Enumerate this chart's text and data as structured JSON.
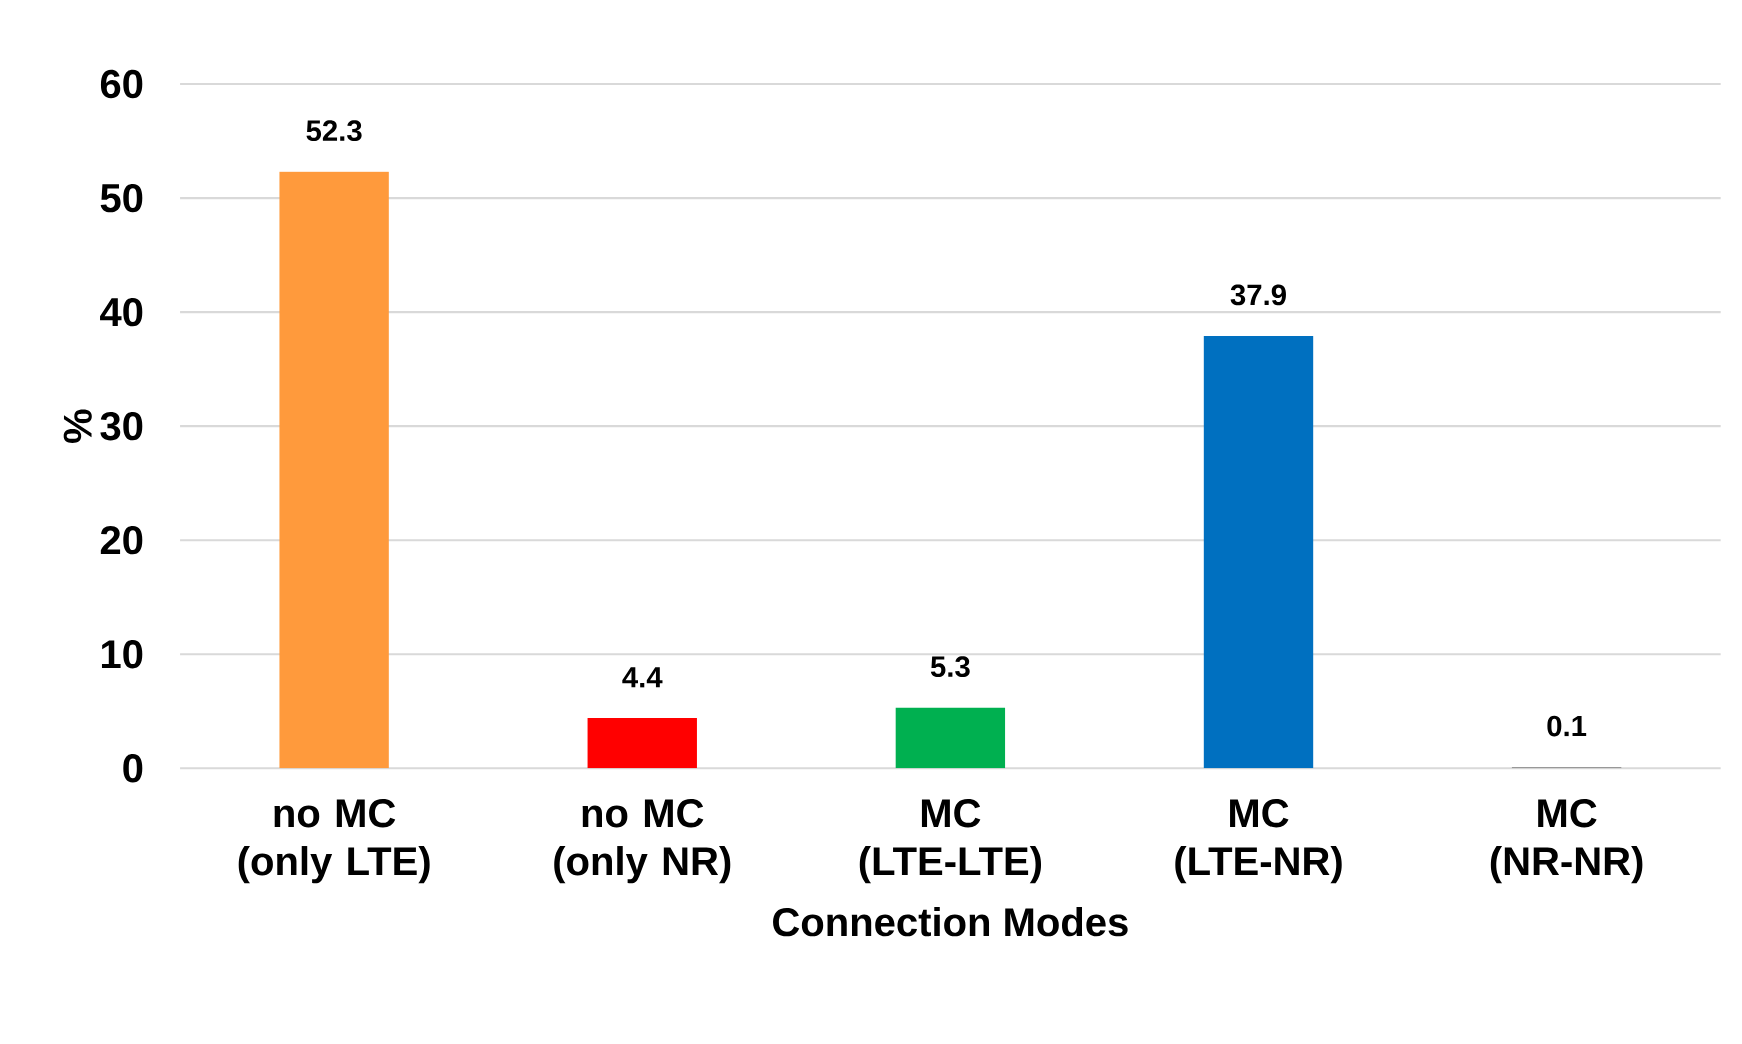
{
  "chart_data": {
    "type": "bar",
    "xlabel": "Connection Modes",
    "ylabel": "%",
    "categories": [
      "no MC (only LTE)",
      "no MC (only NR)",
      "MC (LTE-LTE)",
      "MC (LTE-NR)",
      "MC (NR-NR)"
    ],
    "values": [
      52.3,
      4.4,
      5.3,
      37.9,
      0.1
    ],
    "colors": [
      "#ff9a3c",
      "#ff0000",
      "#00b050",
      "#0070c0",
      "#7f7f7f"
    ],
    "ylim": [
      0,
      60
    ],
    "yticks": [
      0,
      10,
      20,
      30,
      40,
      50,
      60
    ],
    "grid": "y",
    "data_labels": true
  }
}
